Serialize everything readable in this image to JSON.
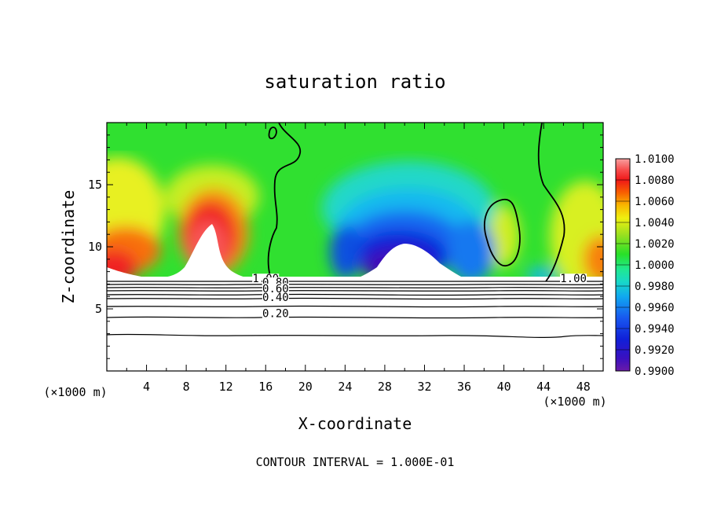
{
  "chart_data": {
    "type": "heatmap",
    "title": "saturation ratio",
    "xlabel": "X-coordinate",
    "ylabel": "Z-coordinate",
    "x_unit": "(×1000 m)",
    "y_unit": "(×1000 m)",
    "xlim": [
      0,
      50
    ],
    "ylim": [
      0,
      20
    ],
    "x_ticks": [
      "4",
      "8",
      "12",
      "16",
      "20",
      "24",
      "28",
      "32",
      "36",
      "40",
      "44",
      "48"
    ],
    "y_ticks": [
      "5",
      "10",
      "15"
    ],
    "footer": "CONTOUR INTERVAL = 1.000E-01",
    "colorbar": {
      "min": 0.99,
      "max": 1.01,
      "labels": [
        "1.0100",
        "1.0080",
        "1.0060",
        "1.0040",
        "1.0020",
        "1.0000",
        "0.9980",
        "0.9960",
        "0.9940",
        "0.9920",
        "0.9900"
      ]
    },
    "contour_labels": [
      {
        "text": "1.00",
        "x": 16.0,
        "z": 7.2
      },
      {
        "text": "0.80",
        "x": 17.0,
        "z": 6.9
      },
      {
        "text": "0.60",
        "x": 17.0,
        "z": 6.4
      },
      {
        "text": "0.40",
        "x": 17.0,
        "z": 5.7
      },
      {
        "text": "0.20",
        "x": 17.0,
        "z": 4.4
      },
      {
        "text": "1.00",
        "x": 47.0,
        "z": 7.2
      }
    ]
  }
}
